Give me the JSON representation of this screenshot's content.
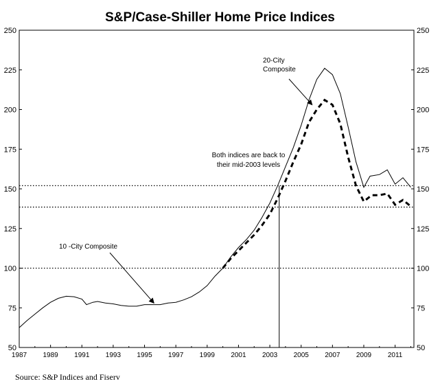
{
  "title": "S&P/Case-Shiller Home Price Indices",
  "source": "Source: S&P Indices and Fiserv",
  "chart_data": {
    "type": "line",
    "title": "S&P/Case-Shiller Home Price Indices",
    "xlim": [
      1987,
      2012.2
    ],
    "ylim": [
      50,
      250
    ],
    "x_ticks": [
      "1987",
      "1989",
      "1991",
      "1993",
      "1995",
      "1997",
      "1999",
      "2001",
      "2003",
      "2005",
      "2007",
      "2009",
      "2011"
    ],
    "y_ticks": [
      "50",
      "75",
      "100",
      "125",
      "150",
      "175",
      "200",
      "225",
      "250"
    ],
    "reference_lines": [
      100,
      138.5,
      152
    ],
    "vertical_marker": 2003.6,
    "series": [
      {
        "name": "10 -City Composite",
        "style": "solid",
        "points": [
          [
            1987.0,
            62.5
          ],
          [
            1987.5,
            67
          ],
          [
            1988.0,
            71
          ],
          [
            1988.5,
            75
          ],
          [
            1989.0,
            78.5
          ],
          [
            1989.5,
            81
          ],
          [
            1990.0,
            82.3
          ],
          [
            1990.5,
            82
          ],
          [
            1991.0,
            80.5
          ],
          [
            1991.3,
            77
          ],
          [
            1991.7,
            78.5
          ],
          [
            1992.0,
            79
          ],
          [
            1992.5,
            78
          ],
          [
            1993.0,
            77.5
          ],
          [
            1993.5,
            76.5
          ],
          [
            1994.0,
            76
          ],
          [
            1994.5,
            76
          ],
          [
            1995.0,
            77
          ],
          [
            1995.5,
            77
          ],
          [
            1996.0,
            77
          ],
          [
            1996.5,
            78
          ],
          [
            1997.0,
            78.5
          ],
          [
            1997.5,
            80
          ],
          [
            1998.0,
            82
          ],
          [
            1998.5,
            85
          ],
          [
            1999.0,
            89
          ],
          [
            1999.5,
            95
          ],
          [
            2000.0,
            100
          ],
          [
            2000.5,
            107
          ],
          [
            2001.0,
            113
          ],
          [
            2001.5,
            118
          ],
          [
            2002.0,
            124
          ],
          [
            2002.5,
            132
          ],
          [
            2003.0,
            141
          ],
          [
            2003.5,
            152
          ],
          [
            2004.0,
            164
          ],
          [
            2004.5,
            176
          ],
          [
            2005.0,
            190
          ],
          [
            2005.5,
            206
          ],
          [
            2006.0,
            219
          ],
          [
            2006.5,
            226
          ],
          [
            2007.0,
            222
          ],
          [
            2007.5,
            210
          ],
          [
            2008.0,
            189
          ],
          [
            2008.5,
            167
          ],
          [
            2009.0,
            151
          ],
          [
            2009.4,
            158
          ],
          [
            2010.0,
            159
          ],
          [
            2010.5,
            162
          ],
          [
            2011.0,
            153
          ],
          [
            2011.5,
            157
          ],
          [
            2012.0,
            151
          ]
        ]
      },
      {
        "name": "20-City Composite",
        "style": "dashed",
        "points": [
          [
            2000.0,
            100
          ],
          [
            2000.5,
            106
          ],
          [
            2001.0,
            111
          ],
          [
            2001.5,
            116
          ],
          [
            2002.0,
            121
          ],
          [
            2002.5,
            127
          ],
          [
            2003.0,
            134
          ],
          [
            2003.5,
            144
          ],
          [
            2004.0,
            155
          ],
          [
            2004.5,
            167
          ],
          [
            2005.0,
            178
          ],
          [
            2005.5,
            192
          ],
          [
            2006.0,
            200
          ],
          [
            2006.5,
            206
          ],
          [
            2007.0,
            203
          ],
          [
            2007.5,
            191
          ],
          [
            2008.0,
            170
          ],
          [
            2008.5,
            152
          ],
          [
            2009.0,
            142
          ],
          [
            2009.5,
            146
          ],
          [
            2010.0,
            146
          ],
          [
            2010.5,
            147
          ],
          [
            2011.0,
            140
          ],
          [
            2011.5,
            143
          ],
          [
            2012.0,
            139
          ]
        ]
      }
    ],
    "annotations": [
      {
        "text_lines": [
          "20-City",
          "Composite"
        ]
      },
      {
        "text_lines": [
          "Both indices are back to",
          "their mid-2003 levels"
        ]
      },
      {
        "text_lines": [
          "10 -City Composite"
        ]
      }
    ]
  }
}
